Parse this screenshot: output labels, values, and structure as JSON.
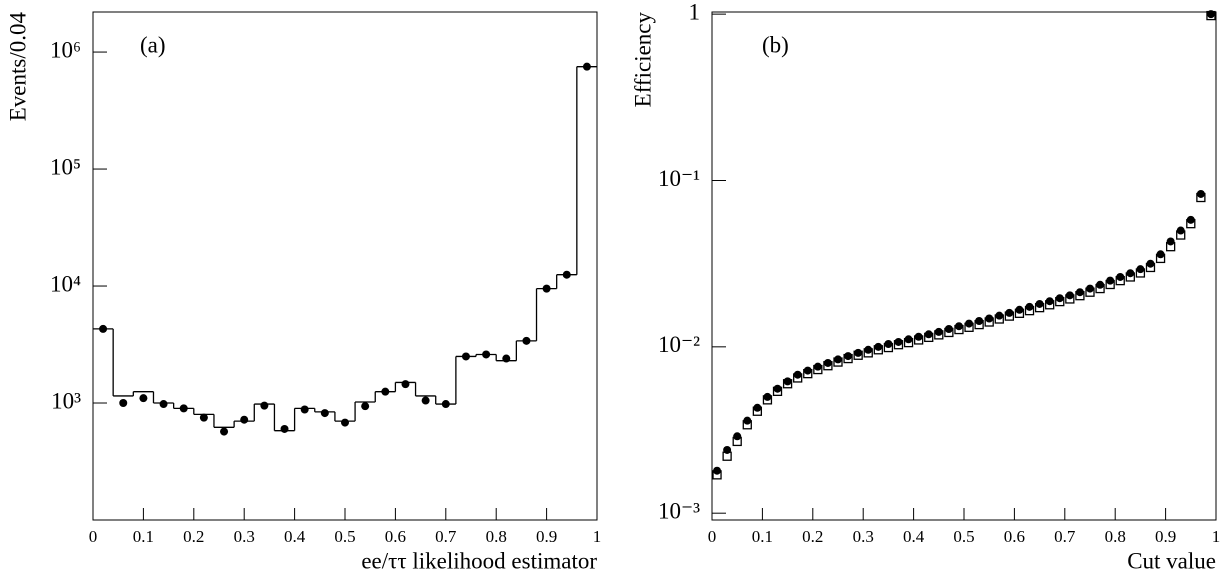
{
  "chart_data": [
    {
      "type": "histogram",
      "panel_label": "(a)",
      "x_label": "ee/ττ likelihood estimator",
      "y_label": "Events/0.04",
      "bins": [
        0,
        0.04,
        0.08,
        0.12,
        0.16,
        0.2,
        0.24,
        0.28,
        0.32,
        0.36,
        0.4,
        0.44,
        0.48,
        0.52,
        0.56,
        0.6,
        0.64,
        0.68,
        0.72,
        0.76,
        0.8,
        0.84,
        0.88,
        0.92,
        0.96,
        1
      ],
      "series": [
        {
          "style": "step",
          "color": "#000000",
          "values": [
            4300,
            1150,
            1250,
            1000,
            900,
            800,
            620,
            700,
            980,
            580,
            900,
            840,
            700,
            1020,
            1250,
            1500,
            1150,
            980,
            2500,
            2600,
            2300,
            3400,
            9500,
            12500,
            750000
          ]
        },
        {
          "style": "points",
          "marker": "circle",
          "color": "#000000",
          "values": [
            4300,
            1000,
            1100,
            980,
            900,
            750,
            570,
            720,
            950,
            600,
            880,
            820,
            680,
            940,
            1250,
            1450,
            1050,
            980,
            2500,
            2600,
            2400,
            3400,
            9500,
            12500,
            750000
          ]
        }
      ],
      "xlim": [
        0,
        1
      ],
      "xticks": [
        0,
        0.1,
        0.2,
        0.3,
        0.4,
        0.5,
        0.6,
        0.7,
        0.8,
        0.9,
        1
      ],
      "ylog": true,
      "ylim": [
        100,
        2200000
      ],
      "yticks": [
        {
          "value": 1000,
          "label": "10³"
        },
        {
          "value": 10000,
          "label": "10⁴"
        },
        {
          "value": 100000,
          "label": "10⁵"
        },
        {
          "value": 1000000,
          "label": "10⁶"
        }
      ]
    },
    {
      "type": "scatter",
      "panel_label": "(b)",
      "x_label": "Cut value",
      "y_label": "Efficiency",
      "x": [
        0.01,
        0.03,
        0.05,
        0.07,
        0.09,
        0.11,
        0.13,
        0.15,
        0.17,
        0.19,
        0.21,
        0.23,
        0.25,
        0.27,
        0.29,
        0.31,
        0.33,
        0.35,
        0.37,
        0.39,
        0.41,
        0.43,
        0.45,
        0.47,
        0.49,
        0.51,
        0.53,
        0.55,
        0.57,
        0.59,
        0.61,
        0.63,
        0.65,
        0.67,
        0.69,
        0.71,
        0.73,
        0.75,
        0.77,
        0.79,
        0.81,
        0.83,
        0.85,
        0.87,
        0.89,
        0.91,
        0.93,
        0.95,
        0.97,
        0.99
      ],
      "series": [
        {
          "marker": "square",
          "color": "#000000",
          "values": [
            0.0017,
            0.0022,
            0.0027,
            0.0034,
            0.0041,
            0.0048,
            0.0054,
            0.006,
            0.0065,
            0.0069,
            0.0073,
            0.0077,
            0.0081,
            0.0085,
            0.0089,
            0.0092,
            0.0096,
            0.0099,
            0.0103,
            0.0106,
            0.011,
            0.0114,
            0.0118,
            0.0122,
            0.0127,
            0.0131,
            0.0136,
            0.0141,
            0.0147,
            0.0153,
            0.0159,
            0.0165,
            0.0172,
            0.0179,
            0.0187,
            0.0194,
            0.0203,
            0.0213,
            0.0224,
            0.0237,
            0.025,
            0.0263,
            0.0278,
            0.03,
            0.034,
            0.04,
            0.047,
            0.055,
            0.079,
            0.98
          ]
        },
        {
          "marker": "circle",
          "color": "#000000",
          "values": [
            0.0018,
            0.0024,
            0.0029,
            0.0036,
            0.0043,
            0.005,
            0.0056,
            0.0062,
            0.0068,
            0.0072,
            0.0076,
            0.008,
            0.0084,
            0.0088,
            0.0092,
            0.0096,
            0.01,
            0.0104,
            0.0107,
            0.0111,
            0.0115,
            0.0119,
            0.0123,
            0.0128,
            0.0133,
            0.0138,
            0.0143,
            0.0148,
            0.0154,
            0.016,
            0.0167,
            0.0174,
            0.0181,
            0.0188,
            0.0196,
            0.0204,
            0.0213,
            0.0224,
            0.0236,
            0.025,
            0.0263,
            0.0277,
            0.0293,
            0.0316,
            0.036,
            0.043,
            0.05,
            0.058,
            0.083,
            1.0
          ]
        }
      ],
      "xlim": [
        0,
        1
      ],
      "xticks": [
        0,
        0.1,
        0.2,
        0.3,
        0.4,
        0.5,
        0.6,
        0.7,
        0.8,
        0.9,
        1
      ],
      "ylog": true,
      "ylim": [
        0.00091,
        1.03
      ],
      "yticks": [
        {
          "value": 0.001,
          "label": "10⁻³"
        },
        {
          "value": 0.01,
          "label": "10⁻²"
        },
        {
          "value": 0.1,
          "label": "10⁻¹"
        },
        1
      ]
    }
  ]
}
